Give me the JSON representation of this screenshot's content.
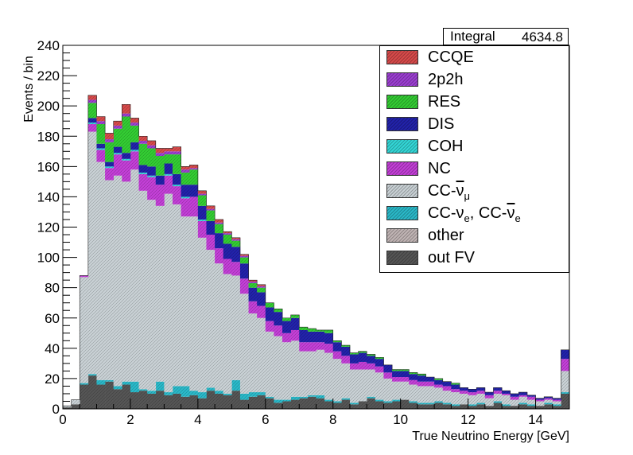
{
  "stats": {
    "label": "Integral",
    "value": "4634.8"
  },
  "legend": [
    {
      "key": "ccqe",
      "label": "CCQE",
      "color": "#d64a4a"
    },
    {
      "key": "2p2h",
      "label": "2p2h",
      "color": "#9b3fd0"
    },
    {
      "key": "res",
      "label": "RES",
      "color": "#33cc33"
    },
    {
      "key": "dis",
      "label": "DIS",
      "color": "#2222aa"
    },
    {
      "key": "coh",
      "label": "COH",
      "color": "#33d6d6"
    },
    {
      "key": "nc",
      "label": "NC",
      "color": "#c23fd6"
    },
    {
      "key": "ccnumubar",
      "label_parts": [
        "CC-",
        "ν",
        "μ"
      ],
      "color": "#c8d0d4"
    },
    {
      "key": "ccnue",
      "label_parts": [
        "CC-ν",
        "e",
        ", CC-",
        "ν",
        "e"
      ],
      "color": "#2ab8c8"
    },
    {
      "key": "other",
      "label": "other",
      "color": "#c0b4b4"
    },
    {
      "key": "outfv",
      "label": "out FV",
      "color": "#555555"
    }
  ],
  "chart_data": {
    "type": "bar",
    "stacked": true,
    "ylabel": "Events / bin",
    "xlabel": "True Neutrino Energy [GeV]",
    "xlim": [
      0,
      15
    ],
    "ylim": [
      0,
      240
    ],
    "xticks": [
      0,
      2,
      4,
      6,
      8,
      10,
      12,
      14
    ],
    "yticks": [
      0,
      20,
      40,
      60,
      80,
      100,
      120,
      140,
      160,
      180,
      200,
      220,
      240
    ],
    "bin_width": 0.25,
    "x": [
      0.125,
      0.375,
      0.625,
      0.875,
      1.125,
      1.375,
      1.625,
      1.875,
      2.125,
      2.375,
      2.625,
      2.875,
      3.125,
      3.375,
      3.625,
      3.875,
      4.125,
      4.375,
      4.625,
      4.875,
      5.125,
      5.375,
      5.625,
      5.875,
      6.125,
      6.375,
      6.625,
      6.875,
      7.125,
      7.375,
      7.625,
      7.875,
      8.125,
      8.375,
      8.625,
      8.875,
      9.125,
      9.375,
      9.625,
      9.875,
      10.125,
      10.375,
      10.625,
      10.875,
      11.125,
      11.375,
      11.625,
      11.875,
      12.125,
      12.375,
      12.625,
      12.875,
      13.125,
      13.375,
      13.625,
      13.875,
      14.125,
      14.375,
      14.625,
      14.875
    ],
    "series": [
      {
        "name": "out FV",
        "values": [
          1,
          3,
          16,
          22,
          16,
          18,
          13,
          16,
          11,
          12,
          10,
          12,
          9,
          10,
          8,
          9,
          7,
          12,
          10,
          9,
          12,
          6,
          8,
          9,
          7,
          4,
          5,
          6,
          7,
          8,
          7,
          5,
          4,
          6,
          3,
          5,
          7,
          5,
          4,
          5,
          6,
          4,
          3,
          3,
          4,
          3,
          2,
          3,
          2,
          3,
          2,
          4,
          2,
          2,
          3,
          2,
          2,
          3,
          2,
          10
        ]
      },
      {
        "name": "CC-νe, CC-ν̄e",
        "values": [
          0,
          0,
          1,
          1,
          3,
          1,
          2,
          2,
          7,
          1,
          2,
          6,
          2,
          5,
          7,
          3,
          4,
          2,
          2,
          1,
          7,
          4,
          3,
          2,
          1,
          2,
          1,
          2,
          1,
          1,
          2,
          1,
          1,
          1,
          1,
          0,
          1,
          1,
          1,
          1,
          0,
          1,
          1,
          1,
          1,
          1,
          1,
          0,
          1,
          1,
          0,
          1,
          1,
          0,
          1,
          1,
          0,
          1,
          1,
          1
        ]
      },
      {
        "name": "CC-ν̄μ",
        "values": [
          1,
          3,
          70,
          160,
          144,
          132,
          139,
          132,
          140,
          131,
          126,
          116,
          131,
          120,
          112,
          115,
          102,
          91,
          84,
          79,
          69,
          66,
          52,
          49,
          43,
          42,
          38,
          37,
          30,
          29,
          30,
          31,
          28,
          23,
          22,
          21,
          18,
          18,
          15,
          12,
          12,
          11,
          11,
          11,
          9,
          8,
          8,
          7,
          6,
          6,
          5,
          5,
          6,
          4,
          4,
          3,
          3,
          2,
          2,
          14
        ]
      },
      {
        "name": "NC",
        "values": [
          0,
          0,
          1,
          5,
          8,
          8,
          14,
          14,
          12,
          11,
          15,
          14,
          12,
          12,
          12,
          13,
          11,
          10,
          10,
          10,
          9,
          10,
          8,
          8,
          7,
          7,
          6,
          7,
          6,
          6,
          5,
          6,
          5,
          5,
          4,
          5,
          4,
          4,
          4,
          3,
          3,
          3,
          3,
          3,
          2,
          3,
          2,
          2,
          2,
          2,
          2,
          2,
          1,
          2,
          1,
          2,
          1,
          1,
          1,
          8
        ]
      },
      {
        "name": "COH",
        "values": [
          0,
          0,
          0,
          1,
          1,
          1,
          1,
          1,
          1,
          1,
          1,
          0,
          1,
          1,
          1,
          0,
          1,
          0,
          0,
          0,
          0,
          0,
          0,
          0,
          0,
          0,
          0,
          0,
          0,
          0,
          0,
          0,
          0,
          0,
          0,
          0,
          0,
          0,
          0,
          0,
          0,
          0,
          0,
          0,
          0,
          0,
          0,
          0,
          0,
          0,
          0,
          0,
          0,
          0,
          0,
          0,
          0,
          0,
          0,
          0
        ]
      },
      {
        "name": "DIS",
        "values": [
          0,
          0,
          0,
          3,
          3,
          3,
          4,
          4,
          5,
          5,
          6,
          6,
          7,
          7,
          8,
          8,
          9,
          9,
          10,
          10,
          10,
          10,
          9,
          9,
          9,
          9,
          8,
          8,
          8,
          7,
          7,
          7,
          6,
          6,
          6,
          6,
          5,
          5,
          5,
          4,
          4,
          4,
          4,
          3,
          3,
          3,
          3,
          2,
          2,
          2,
          2,
          2,
          2,
          2,
          2,
          1,
          1,
          1,
          1,
          6
        ]
      },
      {
        "name": "RES",
        "values": [
          0,
          0,
          0,
          10,
          13,
          13,
          12,
          24,
          11,
          14,
          12,
          13,
          6,
          13,
          8,
          10,
          7,
          7,
          6,
          6,
          4,
          4,
          3,
          3,
          3,
          2,
          2,
          2,
          2,
          2,
          1,
          2,
          1,
          1,
          1,
          1,
          1,
          1,
          0,
          1,
          1,
          1,
          1,
          0,
          1,
          0,
          1,
          0,
          0,
          0,
          0,
          0,
          0,
          0,
          0,
          0,
          0,
          0,
          0,
          0
        ]
      },
      {
        "name": "2p2h",
        "values": [
          0,
          0,
          0,
          2,
          2,
          2,
          2,
          2,
          2,
          2,
          2,
          2,
          2,
          2,
          2,
          1,
          1,
          1,
          1,
          1,
          1,
          1,
          1,
          1,
          0,
          0,
          0,
          0,
          0,
          0,
          0,
          0,
          0,
          0,
          0,
          0,
          0,
          0,
          0,
          0,
          0,
          0,
          0,
          0,
          0,
          0,
          0,
          0,
          0,
          0,
          0,
          0,
          0,
          0,
          0,
          0,
          0,
          0,
          0,
          0
        ]
      },
      {
        "name": "CCQE",
        "values": [
          0,
          0,
          0,
          3,
          3,
          4,
          3,
          6,
          3,
          3,
          3,
          3,
          2,
          3,
          2,
          2,
          2,
          2,
          2,
          1,
          1,
          1,
          1,
          1,
          0,
          0,
          0,
          0,
          0,
          0,
          0,
          0,
          0,
          0,
          0,
          0,
          0,
          0,
          0,
          0,
          0,
          0,
          0,
          0,
          0,
          0,
          0,
          0,
          0,
          0,
          0,
          0,
          0,
          0,
          0,
          0,
          0,
          0,
          0,
          0
        ]
      }
    ],
    "colors": {
      "out FV": "#555555",
      "CC-νe, CC-ν̄e": "#2ab8c8",
      "CC-ν̄μ": "#c8d0d4",
      "NC": "#c23fd6",
      "COH": "#33d6d6",
      "DIS": "#2222aa",
      "RES": "#33cc33",
      "2p2h": "#9b3fd0",
      "CCQE": "#d64a4a"
    }
  }
}
